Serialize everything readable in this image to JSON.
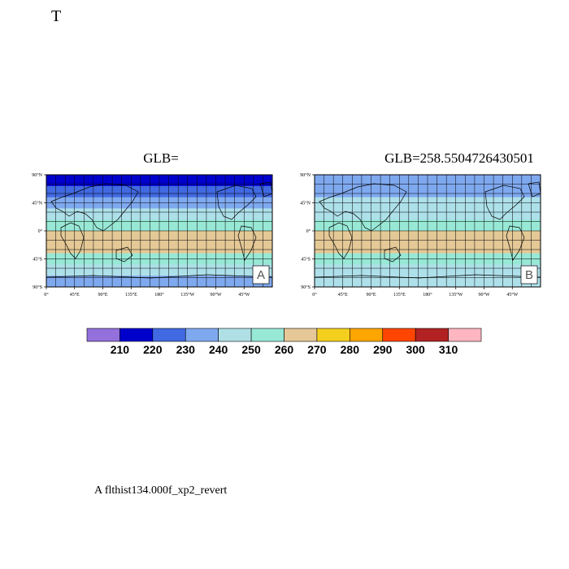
{
  "page_title": "T",
  "panels": [
    {
      "id": "A",
      "title": "GLB=",
      "label": "A",
      "bands": [
        "#0000cd",
        "#4169e1",
        "#7fa9ef",
        "#aee0ea",
        "#98e8d6",
        "#e4c896",
        "#e4c896",
        "#98e8d6",
        "#aee0ea",
        "#7fa9ef"
      ]
    },
    {
      "id": "B",
      "title": "GLB=258.5504726430501",
      "label": "B",
      "bands": [
        "#7fa9ef",
        "#7fa9ef",
        "#aee0ea",
        "#aee0ea",
        "#98e8d6",
        "#e4c896",
        "#e4c896",
        "#98e8d6",
        "#aee0ea",
        "#aee0ea"
      ]
    }
  ],
  "axes": {
    "lat_ticks": [
      "90°N",
      "45°N",
      "0°",
      "45°S",
      "90°S"
    ],
    "lon_ticks": [
      "0°",
      "45°E",
      "90°E",
      "135°E",
      "180°",
      "135°W",
      "90°W",
      "45°W"
    ]
  },
  "colorbar": {
    "colors": [
      "#9370db",
      "#0000cd",
      "#4169e1",
      "#7fa9ef",
      "#b0e0e6",
      "#98e8d6",
      "#e6c898",
      "#f5cf1e",
      "#ffa500",
      "#ff4500",
      "#b22222",
      "#ffb6c1"
    ],
    "labels": [
      "210",
      "220",
      "230",
      "240",
      "250",
      "260",
      "270",
      "280",
      "290",
      "300",
      "310"
    ]
  },
  "caption": "A  flthist134.000f_xp2_revert"
}
